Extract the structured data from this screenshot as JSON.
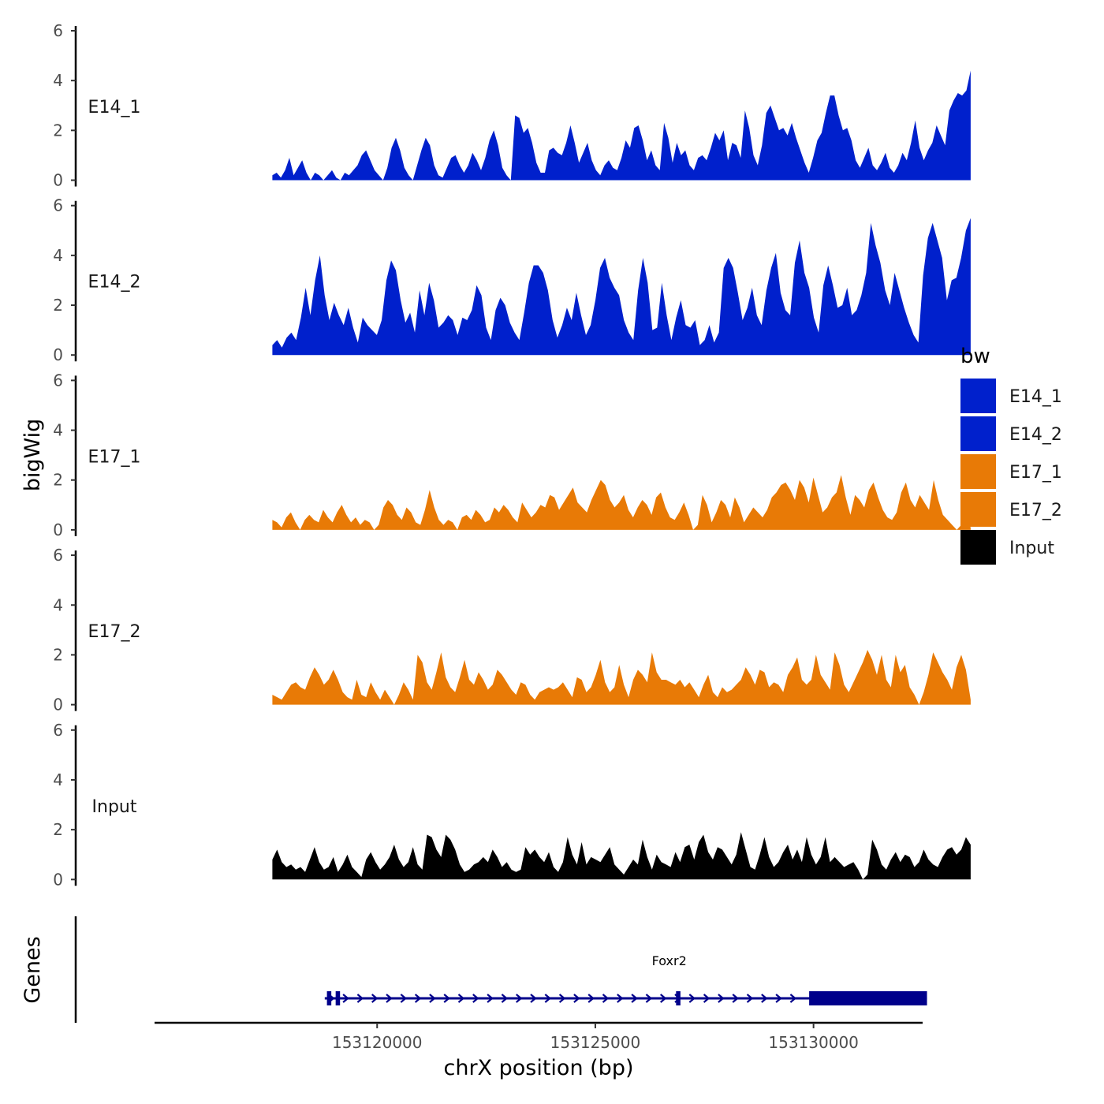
{
  "chart_data": {
    "type": "area",
    "title": "",
    "ylabel": "bigWig",
    "genes_label": "Genes",
    "xlabel": "chrX position (bp)",
    "xlim": [
      153114900,
      153132500
    ],
    "x_range_data": [
      153117600,
      153133600
    ],
    "ylim": [
      0,
      6
    ],
    "y_ticks": [
      "0",
      "2",
      "4",
      "6"
    ],
    "x_ticks": [
      {
        "value": 153120000,
        "label": "153120000"
      },
      {
        "value": 153125000,
        "label": "153125000"
      },
      {
        "value": 153130000,
        "label": "153130000"
      }
    ],
    "legend": {
      "title": "bw",
      "placement": "right",
      "entries": [
        {
          "label": "E14_1",
          "color": "#0020CC"
        },
        {
          "label": "E14_2",
          "color": "#0020CC"
        },
        {
          "label": "E17_1",
          "color": "#E87A06"
        },
        {
          "label": "E17_2",
          "color": "#E87A06"
        },
        {
          "label": "Input",
          "color": "#000000"
        }
      ]
    },
    "series": [
      {
        "name": "E14_1",
        "color": "#0020CC",
        "values": [
          0.2,
          0.3,
          0.1,
          0.4,
          0.9,
          0.2,
          0.5,
          0.8,
          0.3,
          0.0,
          0.3,
          0.2,
          0.0,
          0.2,
          0.4,
          0.1,
          0.0,
          0.3,
          0.2,
          0.4,
          0.6,
          1.0,
          1.2,
          0.8,
          0.4,
          0.2,
          0.0,
          0.5,
          1.3,
          1.7,
          1.2,
          0.5,
          0.2,
          0.0,
          0.6,
          1.2,
          1.7,
          1.4,
          0.6,
          0.2,
          0.1,
          0.5,
          0.9,
          1.0,
          0.6,
          0.3,
          0.6,
          1.1,
          0.8,
          0.4,
          0.9,
          1.6,
          2.0,
          1.4,
          0.5,
          0.2,
          0.0,
          2.6,
          2.5,
          1.9,
          2.1,
          1.5,
          0.7,
          0.3,
          0.3,
          1.2,
          1.3,
          1.1,
          1.0,
          1.5,
          2.2,
          1.5,
          0.7,
          1.1,
          1.5,
          0.8,
          0.4,
          0.2,
          0.6,
          0.8,
          0.5,
          0.4,
          0.9,
          1.6,
          1.3,
          2.1,
          2.2,
          1.6,
          0.8,
          1.2,
          0.6,
          0.4,
          2.3,
          1.7,
          0.7,
          1.5,
          1.0,
          1.2,
          0.6,
          0.4,
          0.9,
          1.0,
          0.8,
          1.3,
          1.9,
          1.6,
          2.0,
          0.8,
          1.5,
          1.4,
          0.9,
          2.8,
          2.1,
          1.0,
          0.6,
          1.4,
          2.7,
          3.0,
          2.5,
          2.0,
          2.1,
          1.8,
          2.3,
          1.7,
          1.2,
          0.7,
          0.3,
          0.9,
          1.6,
          1.9,
          2.7,
          3.4,
          3.4,
          2.6,
          2.0,
          2.1,
          1.6,
          0.8,
          0.5,
          0.9,
          1.3,
          0.6,
          0.4,
          0.7,
          1.1,
          0.5,
          0.3,
          0.6,
          1.1,
          0.8,
          1.5,
          2.4,
          1.3,
          0.8,
          1.2,
          1.5,
          2.2,
          1.8,
          1.4,
          2.8,
          3.2,
          3.5,
          3.4,
          3.6,
          4.4
        ]
      },
      {
        "name": "E14_2",
        "color": "#0020CC",
        "values": [
          0.4,
          0.6,
          0.3,
          0.7,
          0.9,
          0.6,
          1.5,
          2.7,
          1.6,
          3.0,
          4.0,
          2.4,
          1.4,
          2.1,
          1.6,
          1.2,
          1.9,
          1.1,
          0.5,
          1.5,
          1.2,
          1.0,
          0.8,
          1.4,
          3.0,
          3.8,
          3.4,
          2.2,
          1.3,
          1.7,
          0.9,
          2.6,
          1.6,
          2.9,
          2.2,
          1.1,
          1.3,
          1.6,
          1.4,
          0.8,
          1.5,
          1.4,
          1.8,
          2.8,
          2.4,
          1.1,
          0.6,
          1.8,
          2.3,
          2.0,
          1.3,
          0.9,
          0.6,
          1.7,
          2.9,
          3.6,
          3.6,
          3.3,
          2.6,
          1.4,
          0.7,
          1.2,
          1.9,
          1.4,
          2.5,
          1.6,
          0.8,
          1.2,
          2.2,
          3.5,
          3.9,
          3.1,
          2.7,
          2.4,
          1.4,
          0.9,
          0.6,
          2.6,
          3.9,
          2.9,
          1.0,
          1.1,
          2.9,
          1.6,
          0.6,
          1.5,
          2.2,
          1.2,
          1.1,
          1.4,
          0.4,
          0.6,
          1.2,
          0.5,
          0.9,
          3.5,
          3.9,
          3.5,
          2.5,
          1.4,
          1.9,
          2.7,
          1.6,
          1.2,
          2.6,
          3.5,
          4.1,
          2.5,
          1.8,
          1.6,
          3.7,
          4.6,
          3.3,
          2.7,
          1.5,
          0.9,
          2.8,
          3.6,
          2.8,
          1.9,
          2.0,
          2.7,
          1.6,
          1.8,
          2.4,
          3.3,
          5.3,
          4.4,
          3.7,
          2.6,
          2.0,
          3.3,
          2.6,
          1.9,
          1.3,
          0.8,
          0.5,
          3.2,
          4.7,
          5.3,
          4.6,
          3.9,
          2.2,
          3.0,
          3.1,
          3.9,
          5.0,
          5.5
        ]
      },
      {
        "name": "E17_1",
        "color": "#E87A06",
        "values": [
          0.4,
          0.3,
          0.1,
          0.5,
          0.7,
          0.3,
          0.0,
          0.4,
          0.6,
          0.4,
          0.3,
          0.8,
          0.5,
          0.3,
          0.7,
          1.0,
          0.6,
          0.3,
          0.5,
          0.2,
          0.4,
          0.3,
          0.0,
          0.2,
          0.9,
          1.2,
          1.0,
          0.6,
          0.4,
          0.9,
          0.7,
          0.3,
          0.2,
          0.8,
          1.6,
          0.9,
          0.4,
          0.2,
          0.4,
          0.3,
          0.0,
          0.5,
          0.6,
          0.4,
          0.8,
          0.6,
          0.3,
          0.4,
          0.9,
          0.7,
          1.0,
          0.8,
          0.5,
          0.3,
          1.1,
          0.8,
          0.5,
          0.7,
          1.0,
          0.9,
          1.4,
          1.3,
          0.8,
          1.1,
          1.4,
          1.7,
          1.1,
          0.9,
          0.7,
          1.2,
          1.6,
          2.0,
          1.8,
          1.2,
          0.9,
          1.1,
          1.4,
          0.8,
          0.5,
          0.9,
          1.2,
          1.0,
          0.6,
          1.3,
          1.5,
          0.9,
          0.5,
          0.4,
          0.7,
          1.1,
          0.6,
          0.0,
          0.2,
          1.4,
          1.0,
          0.3,
          0.7,
          1.2,
          1.0,
          0.5,
          1.3,
          0.9,
          0.3,
          0.6,
          0.9,
          0.7,
          0.5,
          0.8,
          1.3,
          1.5,
          1.8,
          1.9,
          1.6,
          1.2,
          2.0,
          1.7,
          1.1,
          2.1,
          1.4,
          0.7,
          0.9,
          1.3,
          1.5,
          2.2,
          1.3,
          0.6,
          1.4,
          1.2,
          0.9,
          1.6,
          1.9,
          1.3,
          0.8,
          0.5,
          0.4,
          0.7,
          1.5,
          1.9,
          1.2,
          0.9,
          1.4,
          1.1,
          0.8,
          2.0,
          1.2,
          0.6,
          0.4,
          0.2,
          0.0,
          0.2,
          0.3,
          0.1
        ]
      },
      {
        "name": "E17_2",
        "color": "#E87A06",
        "values": [
          0.4,
          0.3,
          0.2,
          0.5,
          0.8,
          0.9,
          0.7,
          0.6,
          1.1,
          1.5,
          1.2,
          0.8,
          1.0,
          1.4,
          1.0,
          0.5,
          0.3,
          0.2,
          1.0,
          0.4,
          0.3,
          0.9,
          0.5,
          0.2,
          0.6,
          0.3,
          0.0,
          0.4,
          0.9,
          0.6,
          0.2,
          2.0,
          1.7,
          0.9,
          0.6,
          1.3,
          2.1,
          1.1,
          0.7,
          0.5,
          1.1,
          1.8,
          1.0,
          0.8,
          1.3,
          1.0,
          0.6,
          0.8,
          1.4,
          1.2,
          0.9,
          0.6,
          0.4,
          0.9,
          0.8,
          0.4,
          0.2,
          0.5,
          0.6,
          0.7,
          0.6,
          0.7,
          0.9,
          0.6,
          0.3,
          1.1,
          1.0,
          0.5,
          0.7,
          1.2,
          1.8,
          0.9,
          0.5,
          0.7,
          1.6,
          0.8,
          0.3,
          1.0,
          1.4,
          1.2,
          0.9,
          2.1,
          1.3,
          1.0,
          1.0,
          0.9,
          0.8,
          1.0,
          0.7,
          0.9,
          0.6,
          0.3,
          0.8,
          1.2,
          0.5,
          0.3,
          0.7,
          0.5,
          0.6,
          0.8,
          1.0,
          1.5,
          1.2,
          0.8,
          1.4,
          1.3,
          0.7,
          0.9,
          0.8,
          0.5,
          1.2,
          1.5,
          1.9,
          1.0,
          0.8,
          1.0,
          2.0,
          1.2,
          0.9,
          0.6,
          2.1,
          1.6,
          0.8,
          0.5,
          0.9,
          1.3,
          1.7,
          2.2,
          1.8,
          1.2,
          2.0,
          1.0,
          0.7,
          2.0,
          1.3,
          1.6,
          0.7,
          0.4,
          0.0,
          0.5,
          1.2,
          2.1,
          1.7,
          1.3,
          1.0,
          0.6,
          1.5,
          2.0,
          1.4,
          0.2
        ]
      },
      {
        "name": "Input",
        "color": "#000000",
        "values": [
          0.8,
          1.2,
          0.7,
          0.5,
          0.6,
          0.4,
          0.5,
          0.3,
          0.8,
          1.3,
          0.7,
          0.4,
          0.5,
          0.9,
          0.3,
          0.6,
          1.0,
          0.5,
          0.3,
          0.1,
          0.8,
          1.1,
          0.7,
          0.4,
          0.6,
          0.9,
          1.4,
          0.8,
          0.5,
          0.7,
          1.3,
          0.6,
          0.4,
          1.8,
          1.7,
          1.2,
          0.9,
          1.8,
          1.6,
          1.2,
          0.6,
          0.3,
          0.4,
          0.6,
          0.7,
          0.9,
          0.7,
          1.2,
          0.9,
          0.5,
          0.7,
          0.4,
          0.3,
          0.4,
          1.3,
          1.0,
          1.2,
          0.9,
          0.7,
          1.1,
          0.5,
          0.3,
          0.7,
          1.7,
          1.0,
          0.6,
          1.5,
          0.6,
          0.9,
          0.8,
          0.7,
          1.0,
          1.3,
          0.6,
          0.4,
          0.2,
          0.5,
          0.8,
          0.6,
          1.6,
          0.9,
          0.4,
          1.0,
          0.7,
          0.6,
          0.5,
          1.1,
          0.7,
          1.3,
          1.4,
          0.8,
          1.5,
          1.8,
          1.1,
          0.8,
          1.3,
          1.2,
          0.9,
          0.6,
          1.0,
          1.9,
          1.2,
          0.5,
          0.4,
          1.0,
          1.7,
          0.9,
          0.5,
          0.7,
          1.1,
          1.4,
          0.8,
          1.2,
          0.7,
          1.7,
          1.0,
          0.6,
          0.9,
          1.7,
          0.7,
          0.9,
          0.7,
          0.5,
          0.6,
          0.7,
          0.4,
          0.0,
          0.2,
          1.6,
          1.2,
          0.6,
          0.4,
          0.8,
          1.1,
          0.7,
          1.0,
          0.9,
          0.5,
          0.7,
          1.2,
          0.8,
          0.6,
          0.5,
          0.9,
          1.2,
          1.3,
          1.0,
          1.2,
          1.7,
          1.4
        ]
      }
    ],
    "genes": [
      {
        "name": "Foxr2",
        "strand": "+",
        "start": 153118800,
        "end": 153132600,
        "thin_exons": [
          [
            153118850,
            153118950
          ],
          [
            153119050,
            153119150
          ],
          [
            153126850,
            153126950
          ]
        ],
        "thick_exon": [
          153129900,
          153132600
        ]
      }
    ]
  }
}
